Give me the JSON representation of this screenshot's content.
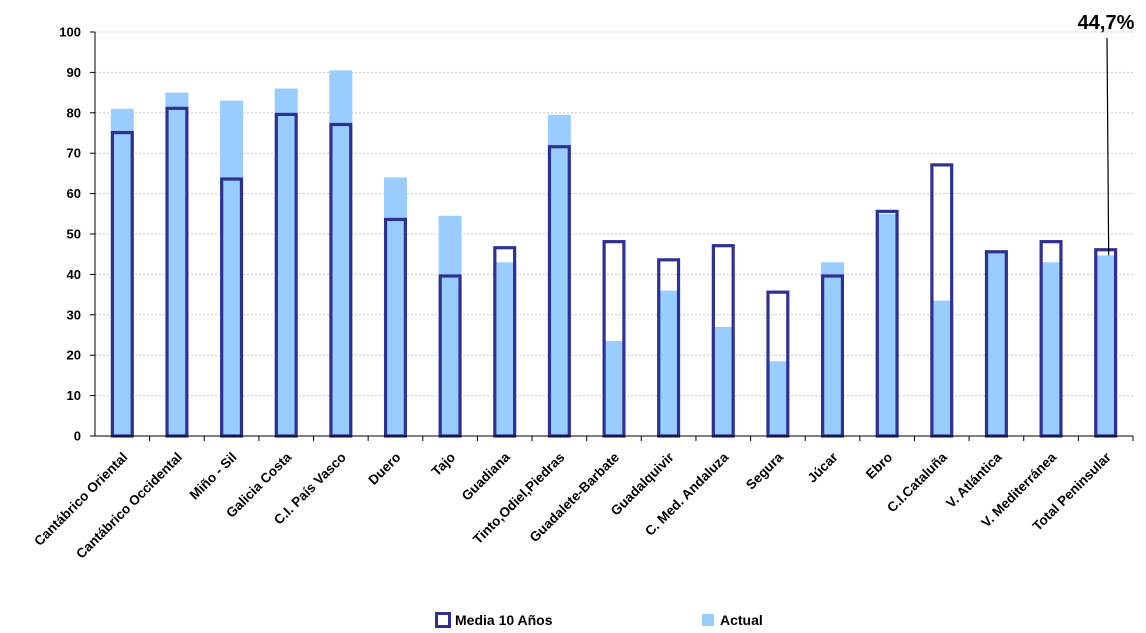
{
  "chart_data": {
    "type": "bar",
    "categories": [
      "Cantábrico Oriental",
      "Cantábrico Occidental",
      "Miño - Sil",
      "Galicia Costa",
      "C.I. País Vasco",
      "Duero",
      "Tajo",
      "Guadiana",
      "Tinto,Odiel,Piedras",
      "Guadalete-Barbate",
      "Guadalquivir",
      "C. Med. Andaluza",
      "Segura",
      "Júcar",
      "Ebro",
      "C.I.Cataluña",
      "V. Atlántica",
      "V. Mediterránea",
      "Total Peninsular"
    ],
    "series": [
      {
        "name": "Media 10 Años",
        "style": "outline",
        "color": "#2e3192",
        "values": [
          75.5,
          81.5,
          64,
          80,
          77.5,
          54,
          40,
          47,
          72,
          48.5,
          44,
          47.5,
          36,
          40,
          56,
          67.5,
          46,
          48.5,
          46.5
        ]
      },
      {
        "name": "Actual",
        "style": "fill",
        "color": "#99ccff",
        "values": [
          81,
          85,
          83,
          86,
          90.5,
          64,
          54.5,
          43,
          79.5,
          23.5,
          36,
          27,
          18.5,
          43,
          55,
          33.5,
          45.5,
          43,
          44.7
        ]
      }
    ],
    "ylim": [
      0,
      100
    ],
    "yticks": [
      0,
      10,
      20,
      30,
      40,
      50,
      60,
      70,
      80,
      90,
      100
    ],
    "grid": true,
    "legend_position": "bottom",
    "annotation": {
      "text": "44,7%",
      "category": "Total Peninsular"
    }
  },
  "legend": {
    "media_label": "Media 10 Años",
    "actual_label": "Actual"
  }
}
